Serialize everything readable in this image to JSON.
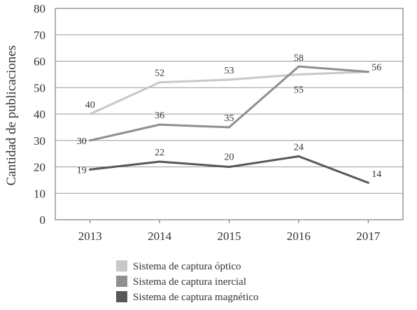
{
  "chart_data": {
    "type": "line",
    "title": "",
    "xlabel": "",
    "ylabel": "Cantidad de publicaciones",
    "categories": [
      "2013",
      "2014",
      "2015",
      "2016",
      "2017"
    ],
    "ylim": [
      0,
      80
    ],
    "yticks": [
      "0",
      "10",
      "20",
      "30",
      "40",
      "50",
      "60",
      "70",
      "80"
    ],
    "grid": "horizontal",
    "legend_position": "bottom",
    "series": [
      {
        "name": "Sistema de captura óptico",
        "color": "#c8c8c8",
        "values": [
          40,
          52,
          53,
          55,
          56
        ],
        "labels": [
          "40",
          "52",
          "53",
          "55",
          "56"
        ]
      },
      {
        "name": "Sistema de captura inercial",
        "color": "#8f8f8f",
        "values": [
          30,
          36,
          35,
          58,
          56
        ],
        "labels": [
          "30",
          "36",
          "35",
          "58",
          ""
        ]
      },
      {
        "name": "Sistema de captura magnético",
        "color": "#585858",
        "values": [
          19,
          22,
          20,
          24,
          14
        ],
        "labels": [
          "19",
          "22",
          "20",
          "24",
          "14"
        ]
      }
    ]
  }
}
